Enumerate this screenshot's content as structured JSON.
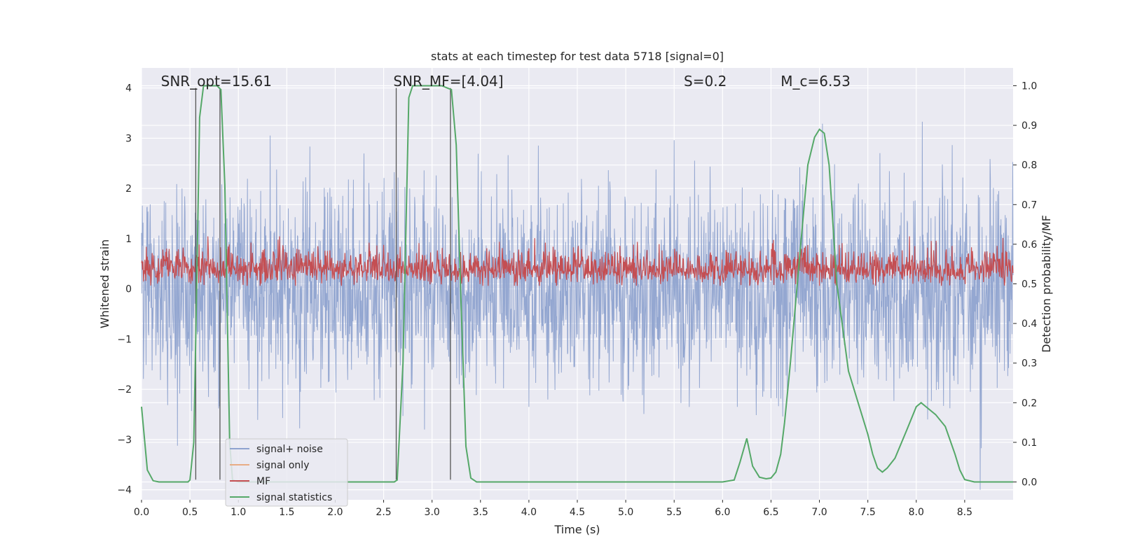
{
  "chart_data": {
    "type": "line",
    "title": "stats at each timestep for test data 5718 [signal=0]",
    "xlabel": "Time (s)",
    "ylabel": "Whitened strain",
    "y2label": "Detection probability/MF",
    "xlim": [
      0.0,
      9.0
    ],
    "ylim": [
      -4.2,
      4.4
    ],
    "y2lim": [
      -0.045,
      1.045
    ],
    "xticks": [
      0.0,
      0.5,
      1.0,
      1.5,
      2.0,
      2.5,
      3.0,
      3.5,
      4.0,
      4.5,
      5.0,
      5.5,
      6.0,
      6.5,
      7.0,
      7.5,
      8.0,
      8.5
    ],
    "xtick_labels": [
      "0.0",
      "0.5",
      "1.0",
      "1.5",
      "2.0",
      "2.5",
      "3.0",
      "3.5",
      "4.0",
      "4.5",
      "5.0",
      "5.5",
      "6.0",
      "6.5",
      "7.0",
      "7.5",
      "8.0",
      "8.5"
    ],
    "yticks": [
      -4,
      -3,
      -2,
      -1,
      0,
      1,
      2,
      3,
      4
    ],
    "ytick_labels": [
      "−4",
      "−3",
      "−2",
      "−1",
      "0",
      "1",
      "2",
      "3",
      "4"
    ],
    "y2ticks": [
      0.0,
      0.1,
      0.2,
      0.3,
      0.4,
      0.5,
      0.6,
      0.7,
      0.8,
      0.9,
      1.0
    ],
    "y2tick_labels": [
      "0.0",
      "0.1",
      "0.2",
      "0.3",
      "0.4",
      "0.5",
      "0.6",
      "0.7",
      "0.8",
      "0.9",
      "1.0"
    ],
    "grid": true,
    "legend_position": "lower-left",
    "annotations": [
      {
        "x": 0.2,
        "text": "SNR_opt=15.61"
      },
      {
        "x": 2.6,
        "text": "SNR_MF=[4.04]"
      },
      {
        "x": 5.6,
        "text": "S=0.2"
      },
      {
        "x": 6.6,
        "text": "M_c=6.53"
      }
    ],
    "vlines_x": [
      0.56,
      0.81,
      2.63,
      3.19
    ],
    "vlines_range": [
      -3.8,
      4.0
    ],
    "series": [
      {
        "name": "signal+ noise",
        "axis": "left",
        "color": "#8fa3cf",
        "style": "noise",
        "sample_rate_hz": 256,
        "amplitude_std": 1.0,
        "peak_range": [
          -4.0,
          4.0
        ],
        "values": []
      },
      {
        "name": "signal only",
        "axis": "left",
        "color": "#e8ac85",
        "values": []
      },
      {
        "name": "MF",
        "axis": "right",
        "color": "#c44e52",
        "style": "noise",
        "baseline": 0.535,
        "range": [
          0.495,
          0.62
        ],
        "values": []
      },
      {
        "name": "signal statistics",
        "axis": "right",
        "color": "#55a868",
        "x": [
          0.0,
          0.06,
          0.12,
          0.18,
          0.3,
          0.48,
          0.5,
          0.54,
          0.57,
          0.6,
          0.64,
          0.7,
          0.78,
          0.82,
          0.86,
          0.91,
          0.94,
          1.0,
          2.0,
          2.61,
          2.64,
          2.7,
          2.76,
          2.8,
          2.9,
          3.0,
          3.1,
          3.2,
          3.25,
          3.3,
          3.35,
          3.4,
          3.46,
          3.5,
          3.6,
          6.0,
          6.12,
          6.18,
          6.25,
          6.31,
          6.38,
          6.45,
          6.5,
          6.55,
          6.6,
          6.64,
          6.7,
          6.8,
          6.88,
          6.95,
          7.0,
          7.05,
          7.1,
          7.18,
          7.3,
          7.4,
          7.5,
          7.55,
          7.6,
          7.65,
          7.7,
          7.78,
          7.9,
          8.0,
          8.05,
          8.1,
          8.2,
          8.3,
          8.4,
          8.45,
          8.5,
          8.6,
          8.7,
          9.0
        ],
        "values": [
          0.19,
          0.03,
          0.003,
          0.0,
          0.0,
          0.0,
          0.005,
          0.1,
          0.5,
          0.92,
          1.0,
          1.0,
          1.0,
          0.99,
          0.75,
          0.1,
          0.005,
          0.0,
          0.0,
          0.0,
          0.005,
          0.3,
          0.97,
          1.0,
          1.0,
          1.0,
          1.0,
          0.99,
          0.85,
          0.45,
          0.09,
          0.01,
          0.0,
          0.0,
          0.0,
          0.0,
          0.005,
          0.05,
          0.11,
          0.04,
          0.012,
          0.008,
          0.01,
          0.025,
          0.07,
          0.15,
          0.3,
          0.58,
          0.8,
          0.87,
          0.89,
          0.88,
          0.8,
          0.5,
          0.28,
          0.2,
          0.12,
          0.07,
          0.035,
          0.025,
          0.035,
          0.06,
          0.13,
          0.19,
          0.2,
          0.19,
          0.17,
          0.14,
          0.07,
          0.03,
          0.006,
          0.0,
          0.0,
          0.0
        ]
      }
    ]
  }
}
